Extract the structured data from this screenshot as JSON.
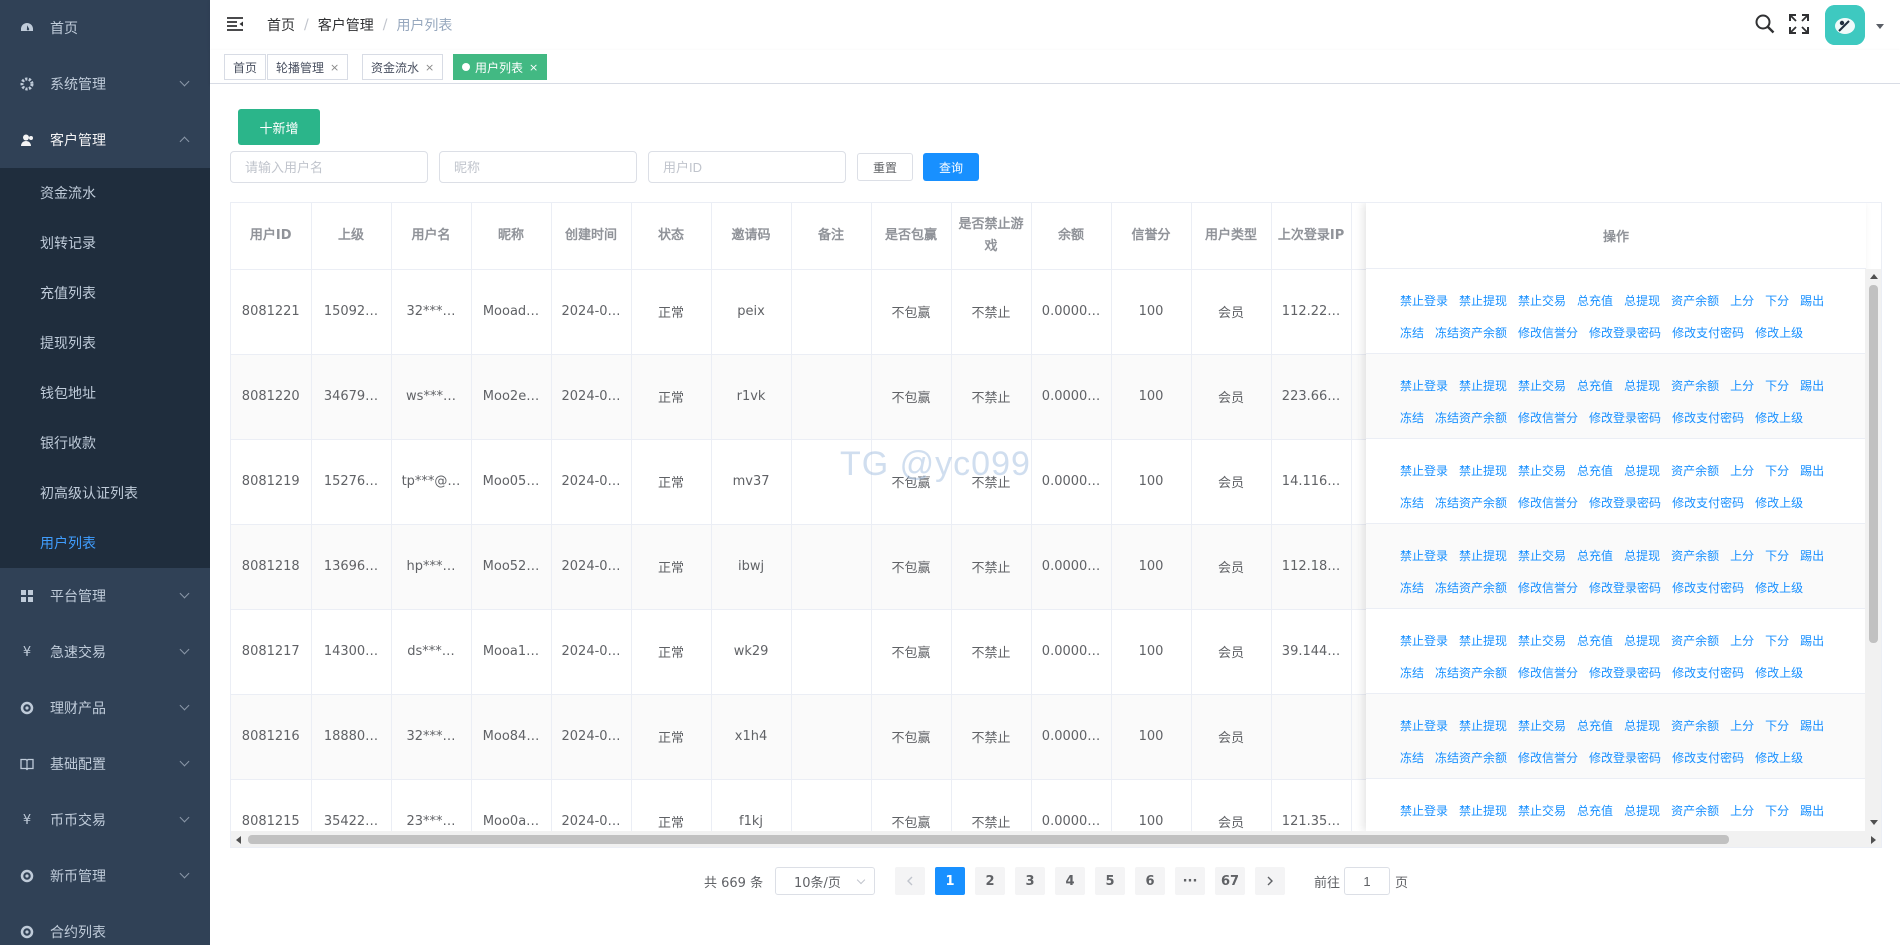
{
  "sidebar": {
    "items": [
      {
        "label": "首页",
        "icon": "dashboard-icon"
      },
      {
        "label": "系统管理",
        "icon": "gear-icon"
      },
      {
        "label": "客户管理",
        "icon": "user-icon"
      }
    ],
    "submenu": [
      {
        "label": "资金流水"
      },
      {
        "label": "划转记录"
      },
      {
        "label": "充值列表"
      },
      {
        "label": "提现列表"
      },
      {
        "label": "钱包地址"
      },
      {
        "label": "银行收款"
      },
      {
        "label": "初高级认证列表"
      },
      {
        "label": "用户列表",
        "active": true
      }
    ],
    "lower_items": [
      {
        "label": "平台管理",
        "icon": "grid-icon"
      },
      {
        "label": "急速交易",
        "icon": "yen-icon"
      },
      {
        "label": "理财产品",
        "icon": "circle-icon"
      },
      {
        "label": "基础配置",
        "icon": "book-icon"
      },
      {
        "label": "币币交易",
        "icon": "yen-icon"
      },
      {
        "label": "新币管理",
        "icon": "circle-icon"
      },
      {
        "label": "合约列表",
        "icon": "circle-icon"
      }
    ]
  },
  "navbar": {
    "breadcrumb": [
      "首页",
      "客户管理",
      "用户列表"
    ]
  },
  "tags": [
    {
      "label": "首页"
    },
    {
      "label": "轮播管理",
      "close": "×"
    },
    {
      "label": "资金流水",
      "close": "×"
    },
    {
      "label": "用户列表",
      "close": "×",
      "active": true
    }
  ],
  "toolbar": {
    "add_label": "十新增",
    "username_placeholder": "请输入用户名",
    "nickname_placeholder": "昵称",
    "userid_placeholder": "用户ID",
    "reset_label": "重置",
    "search_label": "查询"
  },
  "table": {
    "headers": [
      "用户ID",
      "上级",
      "用户名",
      "昵称",
      "创建时间",
      "状态",
      "邀请码",
      "备注",
      "是否包赢",
      "是否禁止游戏",
      "余额",
      "信誉分",
      "用户类型",
      "上次登录IP",
      "",
      "操作"
    ],
    "rows": [
      {
        "id": "8081221",
        "parent": "15092…",
        "username": "32***…",
        "nickname": "Mooad…",
        "created": "2024-0…",
        "status": "正常",
        "invite": "peix",
        "remark": "",
        "win": "不包赢",
        "ban": "不禁止",
        "balance": "0.0000…",
        "credit": "100",
        "type": "会员",
        "ip": "112.22…"
      },
      {
        "id": "8081220",
        "parent": "34679…",
        "username": "ws***…",
        "nickname": "Moo2e…",
        "created": "2024-0…",
        "status": "正常",
        "invite": "r1vk",
        "remark": "",
        "win": "不包赢",
        "ban": "不禁止",
        "balance": "0.0000…",
        "credit": "100",
        "type": "会员",
        "ip": "223.66…"
      },
      {
        "id": "8081219",
        "parent": "15276…",
        "username": "tp***@…",
        "nickname": "Moo05…",
        "created": "2024-0…",
        "status": "正常",
        "invite": "mv37",
        "remark": "",
        "win": "不包赢",
        "ban": "不禁止",
        "balance": "0.0000…",
        "credit": "100",
        "type": "会员",
        "ip": "14.116…"
      },
      {
        "id": "8081218",
        "parent": "13696…",
        "username": "hp***…",
        "nickname": "Moo52…",
        "created": "2024-0…",
        "status": "正常",
        "invite": "ibwj",
        "remark": "",
        "win": "不包赢",
        "ban": "不禁止",
        "balance": "0.0000…",
        "credit": "100",
        "type": "会员",
        "ip": "112.18…"
      },
      {
        "id": "8081217",
        "parent": "14300…",
        "username": "ds***…",
        "nickname": "Mooa1…",
        "created": "2024-0…",
        "status": "正常",
        "invite": "wk29",
        "remark": "",
        "win": "不包赢",
        "ban": "不禁止",
        "balance": "0.0000…",
        "credit": "100",
        "type": "会员",
        "ip": "39.144…"
      },
      {
        "id": "8081216",
        "parent": "18880…",
        "username": "32***…",
        "nickname": "Moo84…",
        "created": "2024-0…",
        "status": "正常",
        "invite": "x1h4",
        "remark": "",
        "win": "不包赢",
        "ban": "不禁止",
        "balance": "0.0000…",
        "credit": "100",
        "type": "会员",
        "ip": ""
      },
      {
        "id": "8081215",
        "parent": "35422…",
        "username": "23***…",
        "nickname": "Moo0a…",
        "created": "2024-0…",
        "status": "正常",
        "invite": "f1kj",
        "remark": "",
        "win": "不包赢",
        "ban": "不禁止",
        "balance": "0.0000…",
        "credit": "100",
        "type": "会员",
        "ip": "121.35…"
      }
    ],
    "ops_line1": [
      "禁止登录",
      "禁止提现",
      "禁止交易",
      "总充值",
      "总提现",
      "资产余额",
      "上分",
      "下分",
      "踢出"
    ],
    "ops_line2": [
      "冻结",
      "冻结资产余额",
      "修改信誉分",
      "修改登录密码",
      "修改支付密码",
      "修改上级"
    ]
  },
  "watermark": "TG @yc099",
  "pagination": {
    "total_text": "共 669 条",
    "page_size": "10条/页",
    "pages": [
      "1",
      "2",
      "3",
      "4",
      "5",
      "6",
      "···",
      "67"
    ],
    "current": "1",
    "goto_label": "前往",
    "goto_value": "1",
    "page_unit": "页"
  },
  "colors": {
    "sidebar_bg": "#304156",
    "submenu_bg": "#1f2d3d",
    "active_blue": "#409eff",
    "primary": "#1890ff",
    "success_tag": "#42b983",
    "green_text": "#67c23a",
    "red_text": "#f56c6c"
  }
}
